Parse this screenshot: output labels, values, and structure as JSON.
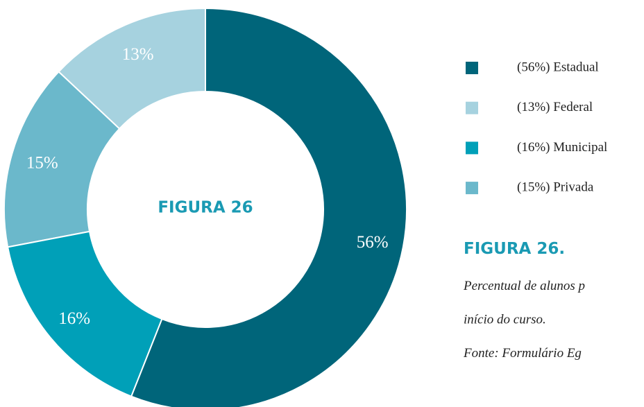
{
  "chart_data": {
    "type": "pie",
    "donut": true,
    "center_text": "FIGURA 26",
    "categories": [
      "Estadual",
      "Municipal",
      "Privada",
      "Federal"
    ],
    "values": [
      56,
      16,
      15,
      13
    ],
    "value_labels": [
      "56%",
      "16%",
      "15%",
      "13%"
    ],
    "colors": [
      "#00657a",
      "#00a0b8",
      "#6bb8cb",
      "#a6d2df"
    ],
    "legend": [
      {
        "label": "(56%) Estadual",
        "color": "#00657a"
      },
      {
        "label": "(13%) Federal",
        "color": "#a6d2df"
      },
      {
        "label": "(16%) Municipal",
        "color": "#00a0b8"
      },
      {
        "label": "(15%) Privada",
        "color": "#6bb8cb"
      }
    ]
  },
  "caption": {
    "title": "FIGURA 26.",
    "lines": [
      "Percentual de alunos p",
      "início do curso.",
      "Fonte: Formulário Eg"
    ]
  }
}
